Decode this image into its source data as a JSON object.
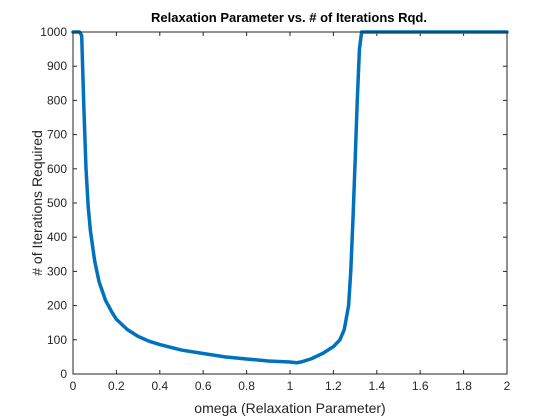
{
  "chart_data": {
    "type": "line",
    "title": "Relaxation Parameter vs. # of Iterations Rqd.",
    "xlabel": "omega (Relaxation Parameter)",
    "ylabel": "# of Iterations Required",
    "xlim": [
      0,
      2
    ],
    "ylim": [
      0,
      1000
    ],
    "xticks": [
      "0",
      "0.2",
      "0.4",
      "0.6",
      "0.8",
      "1",
      "1.2",
      "1.4",
      "1.6",
      "1.8",
      "2"
    ],
    "yticks": [
      "0",
      "100",
      "200",
      "300",
      "400",
      "500",
      "600",
      "700",
      "800",
      "900",
      "1000"
    ],
    "grid": false,
    "line_color": "#0072BD",
    "series": [
      {
        "x": [
          0,
          0.01,
          0.02,
          0.03,
          0.04,
          0.05,
          0.06,
          0.07,
          0.08,
          0.1,
          0.12,
          0.15,
          0.18,
          0.2,
          0.25,
          0.3,
          0.35,
          0.4,
          0.45,
          0.5,
          0.6,
          0.7,
          0.8,
          0.9,
          1.0,
          1.03,
          1.05,
          1.1,
          1.15,
          1.2,
          1.23,
          1.25,
          1.27,
          1.28,
          1.29,
          1.3,
          1.31,
          1.32,
          1.33,
          1.35,
          1.4,
          1.6,
          1.8,
          2.0
        ],
        "y": [
          1000,
          1000,
          1000,
          1000,
          990,
          780,
          600,
          490,
          420,
          330,
          270,
          215,
          180,
          160,
          130,
          110,
          96,
          86,
          78,
          70,
          60,
          50,
          44,
          38,
          35,
          33,
          35,
          45,
          60,
          80,
          100,
          130,
          200,
          300,
          450,
          620,
          800,
          950,
          1000,
          1000,
          1000,
          1000,
          1000,
          1000
        ]
      }
    ]
  }
}
